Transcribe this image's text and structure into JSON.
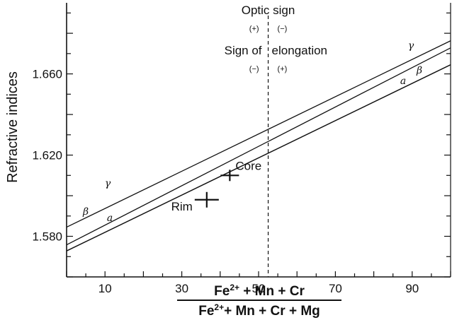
{
  "chart_data": {
    "type": "line",
    "xlabel_numerator_base": "Fe",
    "xlabel_numerator_sup": "2+",
    "xlabel_numerator_rest": " + Mn + Cr",
    "xlabel_denominator_base": "Fe",
    "xlabel_denominator_sup": "2+",
    "xlabel_denominator_rest": "+ Mn + Cr + Mg",
    "ylabel": "Refractive  indices",
    "xlim": [
      0,
      100
    ],
    "ylim": [
      1.56,
      1.695
    ],
    "x_ticks": [
      10,
      30,
      50,
      70,
      90
    ],
    "y_ticks": [
      1.58,
      1.62,
      1.66
    ],
    "y_tick_labels": [
      "1.580",
      "1.620",
      "1.660"
    ],
    "series": [
      {
        "name": "γ",
        "x": [
          0,
          100
        ],
        "y": [
          1.5845,
          1.6763
        ]
      },
      {
        "name": "β",
        "x": [
          0,
          100
        ],
        "y": [
          1.5758,
          1.6728
        ]
      },
      {
        "name": "α",
        "x": [
          0,
          100
        ],
        "y": [
          1.5728,
          1.6645
        ]
      }
    ],
    "points": [
      {
        "label": "Core",
        "x": 42.5,
        "y": 1.61
      },
      {
        "label": "Rim",
        "x": 36.5,
        "y": 1.598
      }
    ],
    "divider_x": 52.5,
    "annotations": {
      "optic_sign": "Optic sign",
      "optic_left": "(+)",
      "optic_right": "(−)",
      "sign_of": "Sign of",
      "elongation": "elongation",
      "elong_left": "(−)",
      "elong_right": "(+)"
    },
    "series_labels": {
      "gamma": "γ",
      "beta": "β",
      "alpha": "a"
    },
    "grid": false
  }
}
